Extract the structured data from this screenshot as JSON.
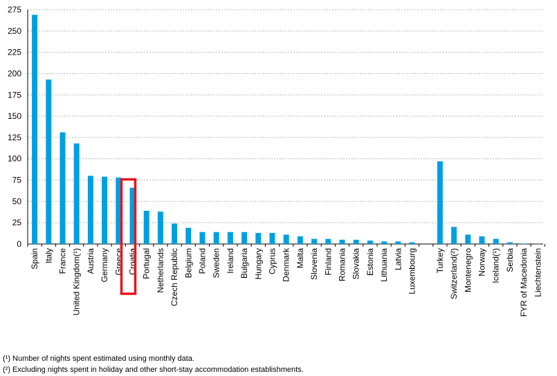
{
  "chart_data": {
    "type": "bar",
    "title": "",
    "xlabel": "",
    "ylabel": "",
    "ylim": [
      0,
      275
    ],
    "yticks": [
      "0",
      "25",
      "50",
      "75",
      "100",
      "125",
      "150",
      "175",
      "200",
      "225",
      "250",
      "275"
    ],
    "grid": true,
    "bar_color": "#00a0e0",
    "highlight_color": "#e8141b",
    "highlight_category": "Croatia",
    "groups": [
      {
        "categories": [
          "Spain",
          "Italy",
          "France",
          "United Kingdom(¹)",
          "Austria",
          "Germany",
          "Greece",
          "Croatia",
          "Portugal",
          "Netherlands",
          "Czech Republic",
          "Belgium",
          "Poland",
          "Sweden",
          "Ireland",
          "Bulgaria",
          "Hungary",
          "Cyprus",
          "Denmark",
          "Malta",
          "Slovenia",
          "Finland",
          "Romania",
          "Slovakia",
          "Estonia",
          "Lithuania",
          "Latvia",
          "Luxembourg"
        ],
        "values": [
          269,
          193,
          131,
          118,
          80,
          79,
          78,
          66,
          39,
          38,
          24,
          19,
          14,
          14,
          14,
          14,
          13,
          13,
          11,
          9,
          6,
          6,
          5,
          5,
          4,
          3,
          3,
          2
        ]
      },
      {
        "categories": [
          "Turkey",
          "Switzerland(²)",
          "Montenegro",
          "Norway",
          "Iceland(¹)",
          "Serbia",
          "FYR of Macedonia",
          "Liechtenstein"
        ],
        "values": [
          97,
          20,
          11,
          9,
          6,
          2,
          0.5,
          0.2
        ]
      }
    ]
  },
  "footnotes": {
    "note1": "(¹) Number of nights spent estimated using monthly data.",
    "note2": "(²) Excluding nights spent in holiday and other short-stay accommodation establishments."
  }
}
